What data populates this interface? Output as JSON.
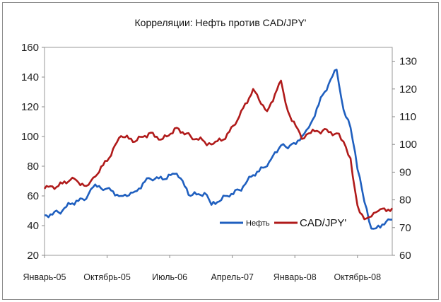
{
  "chart_data": {
    "type": "line",
    "title": "Корреляции: Нефть против CAD/JPY'",
    "x_tick_labels": [
      "Январь-05",
      "Октябрь-05",
      "Июль-06",
      "Апрель-07",
      "Январь-08",
      "Октябрь-08"
    ],
    "x_range": [
      "2005-01",
      "2009-03"
    ],
    "y_left": {
      "min": 20,
      "max": 160,
      "ticks": [
        20,
        40,
        60,
        80,
        100,
        120,
        140,
        160
      ]
    },
    "y_right": {
      "min": 60,
      "max": 135,
      "ticks": [
        60,
        70,
        80,
        90,
        100,
        110,
        120,
        130
      ]
    },
    "grid": false,
    "legend_position": "bottom-right",
    "series": [
      {
        "name": "Нефть",
        "axis": "left",
        "color": "#1f5fbf",
        "x": [
          "2005-01",
          "2005-03",
          "2005-05",
          "2005-07",
          "2005-08",
          "2005-10",
          "2005-12",
          "2006-02",
          "2006-04",
          "2006-06",
          "2006-08",
          "2006-10",
          "2006-12",
          "2007-01",
          "2007-03",
          "2007-05",
          "2007-07",
          "2007-09",
          "2007-11",
          "2007-12",
          "2008-02",
          "2008-03",
          "2008-05",
          "2008-07",
          "2008-08",
          "2008-09",
          "2008-10",
          "2008-11",
          "2008-12",
          "2009-01",
          "2009-03"
        ],
        "y": [
          47,
          49,
          55,
          58,
          66,
          65,
          60,
          63,
          72,
          71,
          75,
          60,
          62,
          54,
          60,
          64,
          74,
          80,
          94,
          92,
          100,
          106,
          128,
          145,
          118,
          106,
          78,
          56,
          38,
          40,
          44
        ]
      },
      {
        "name": "CAD/JPY'",
        "axis": "right",
        "color": "#b01a1a",
        "x": [
          "2005-01",
          "2005-03",
          "2005-05",
          "2005-07",
          "2005-08",
          "2005-10",
          "2005-12",
          "2006-02",
          "2006-04",
          "2006-06",
          "2006-08",
          "2006-10",
          "2006-12",
          "2007-01",
          "2007-03",
          "2007-05",
          "2007-07",
          "2007-09",
          "2007-11",
          "2007-12",
          "2008-02",
          "2008-03",
          "2008-05",
          "2008-07",
          "2008-08",
          "2008-09",
          "2008-10",
          "2008-11",
          "2008-12",
          "2009-01",
          "2009-03"
        ],
        "y": [
          84,
          85,
          88,
          85,
          88,
          94,
          103,
          101,
          104,
          102,
          106,
          103,
          101,
          100,
          102,
          110,
          120,
          112,
          123,
          112,
          102,
          104,
          105,
          104,
          101,
          95,
          78,
          73,
          74,
          76,
          77
        ]
      }
    ]
  }
}
